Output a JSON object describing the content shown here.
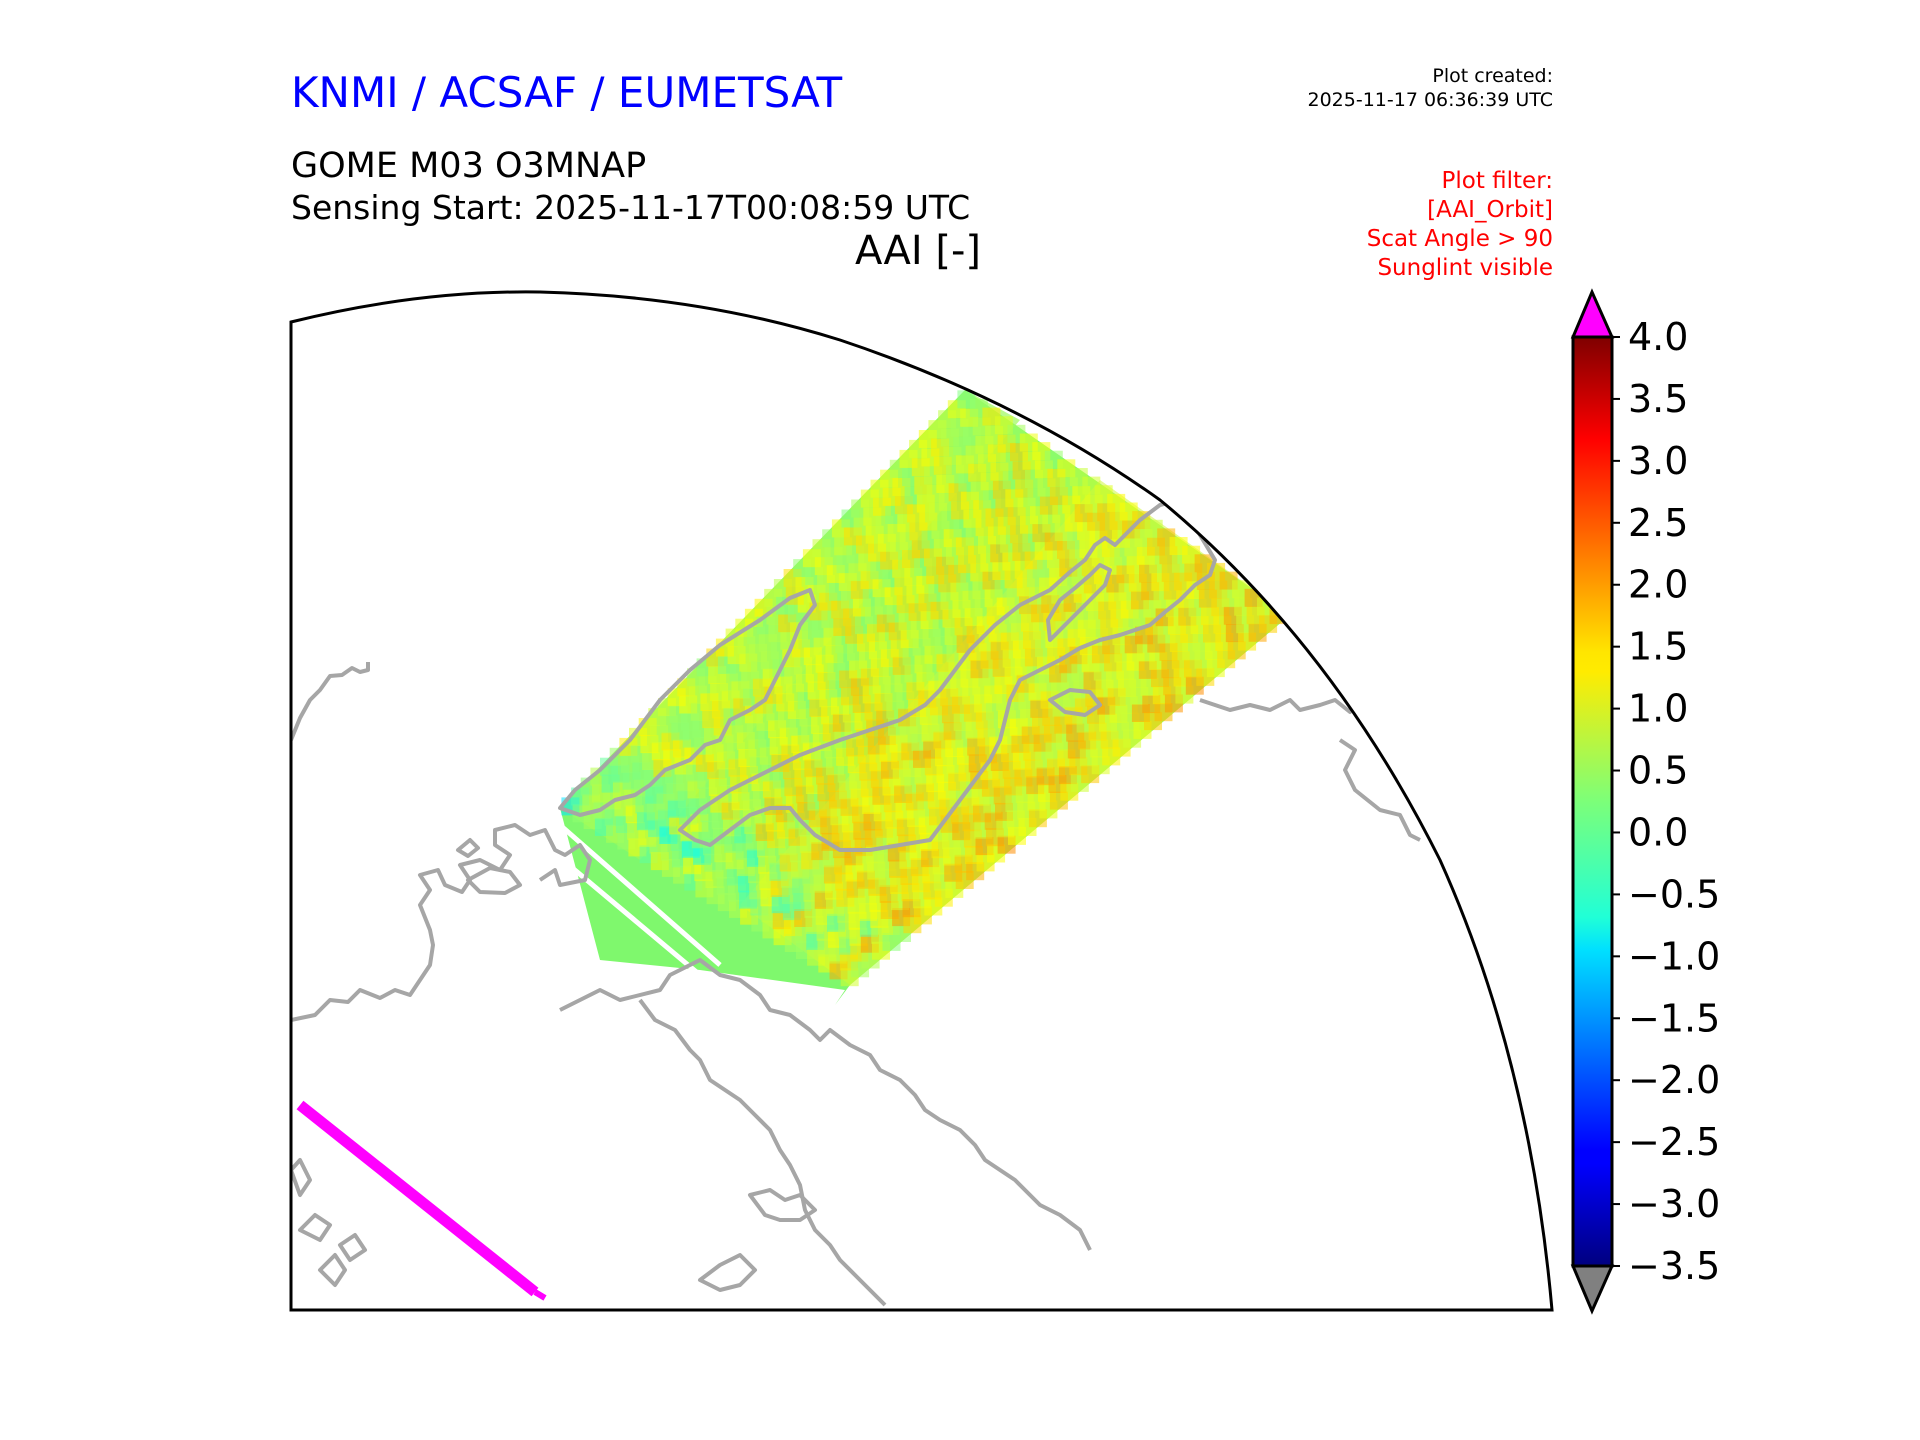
{
  "header": {
    "organization": "KNMI / ACSAF / EUMETSAT",
    "product": "GOME M03 O3MNAP",
    "sensing_start": "Sensing Start: 2025-11-17T00:08:59 UTC",
    "quantity": "AAI [-]",
    "plot_created_label": "Plot created:",
    "plot_created_time": "2025-11-17 06:36:39 UTC",
    "filter_lines": [
      "Plot filter:",
      "[AAI_Orbit]",
      "Scat Angle > 90",
      "Sunglint visible"
    ]
  },
  "colorbar": {
    "ticks": [
      "4.0",
      "3.5",
      "3.0",
      "2.5",
      "2.0",
      "1.5",
      "1.0",
      "0.5",
      "0.0",
      "−0.5",
      "−1.0",
      "−1.5",
      "−2.0",
      "−2.5",
      "−3.0",
      "−3.5"
    ],
    "min": -3.5,
    "max": 4.0,
    "over_color": "#ff00ff",
    "under_color": "#808080",
    "colormap": "jet"
  },
  "map": {
    "projection": "polar-stereographic-sector",
    "coastline_color": "#a6a6a6",
    "overflow_swath_color": "#ff00ff",
    "typical_aai_range": [
      -1.0,
      2.5
    ]
  }
}
